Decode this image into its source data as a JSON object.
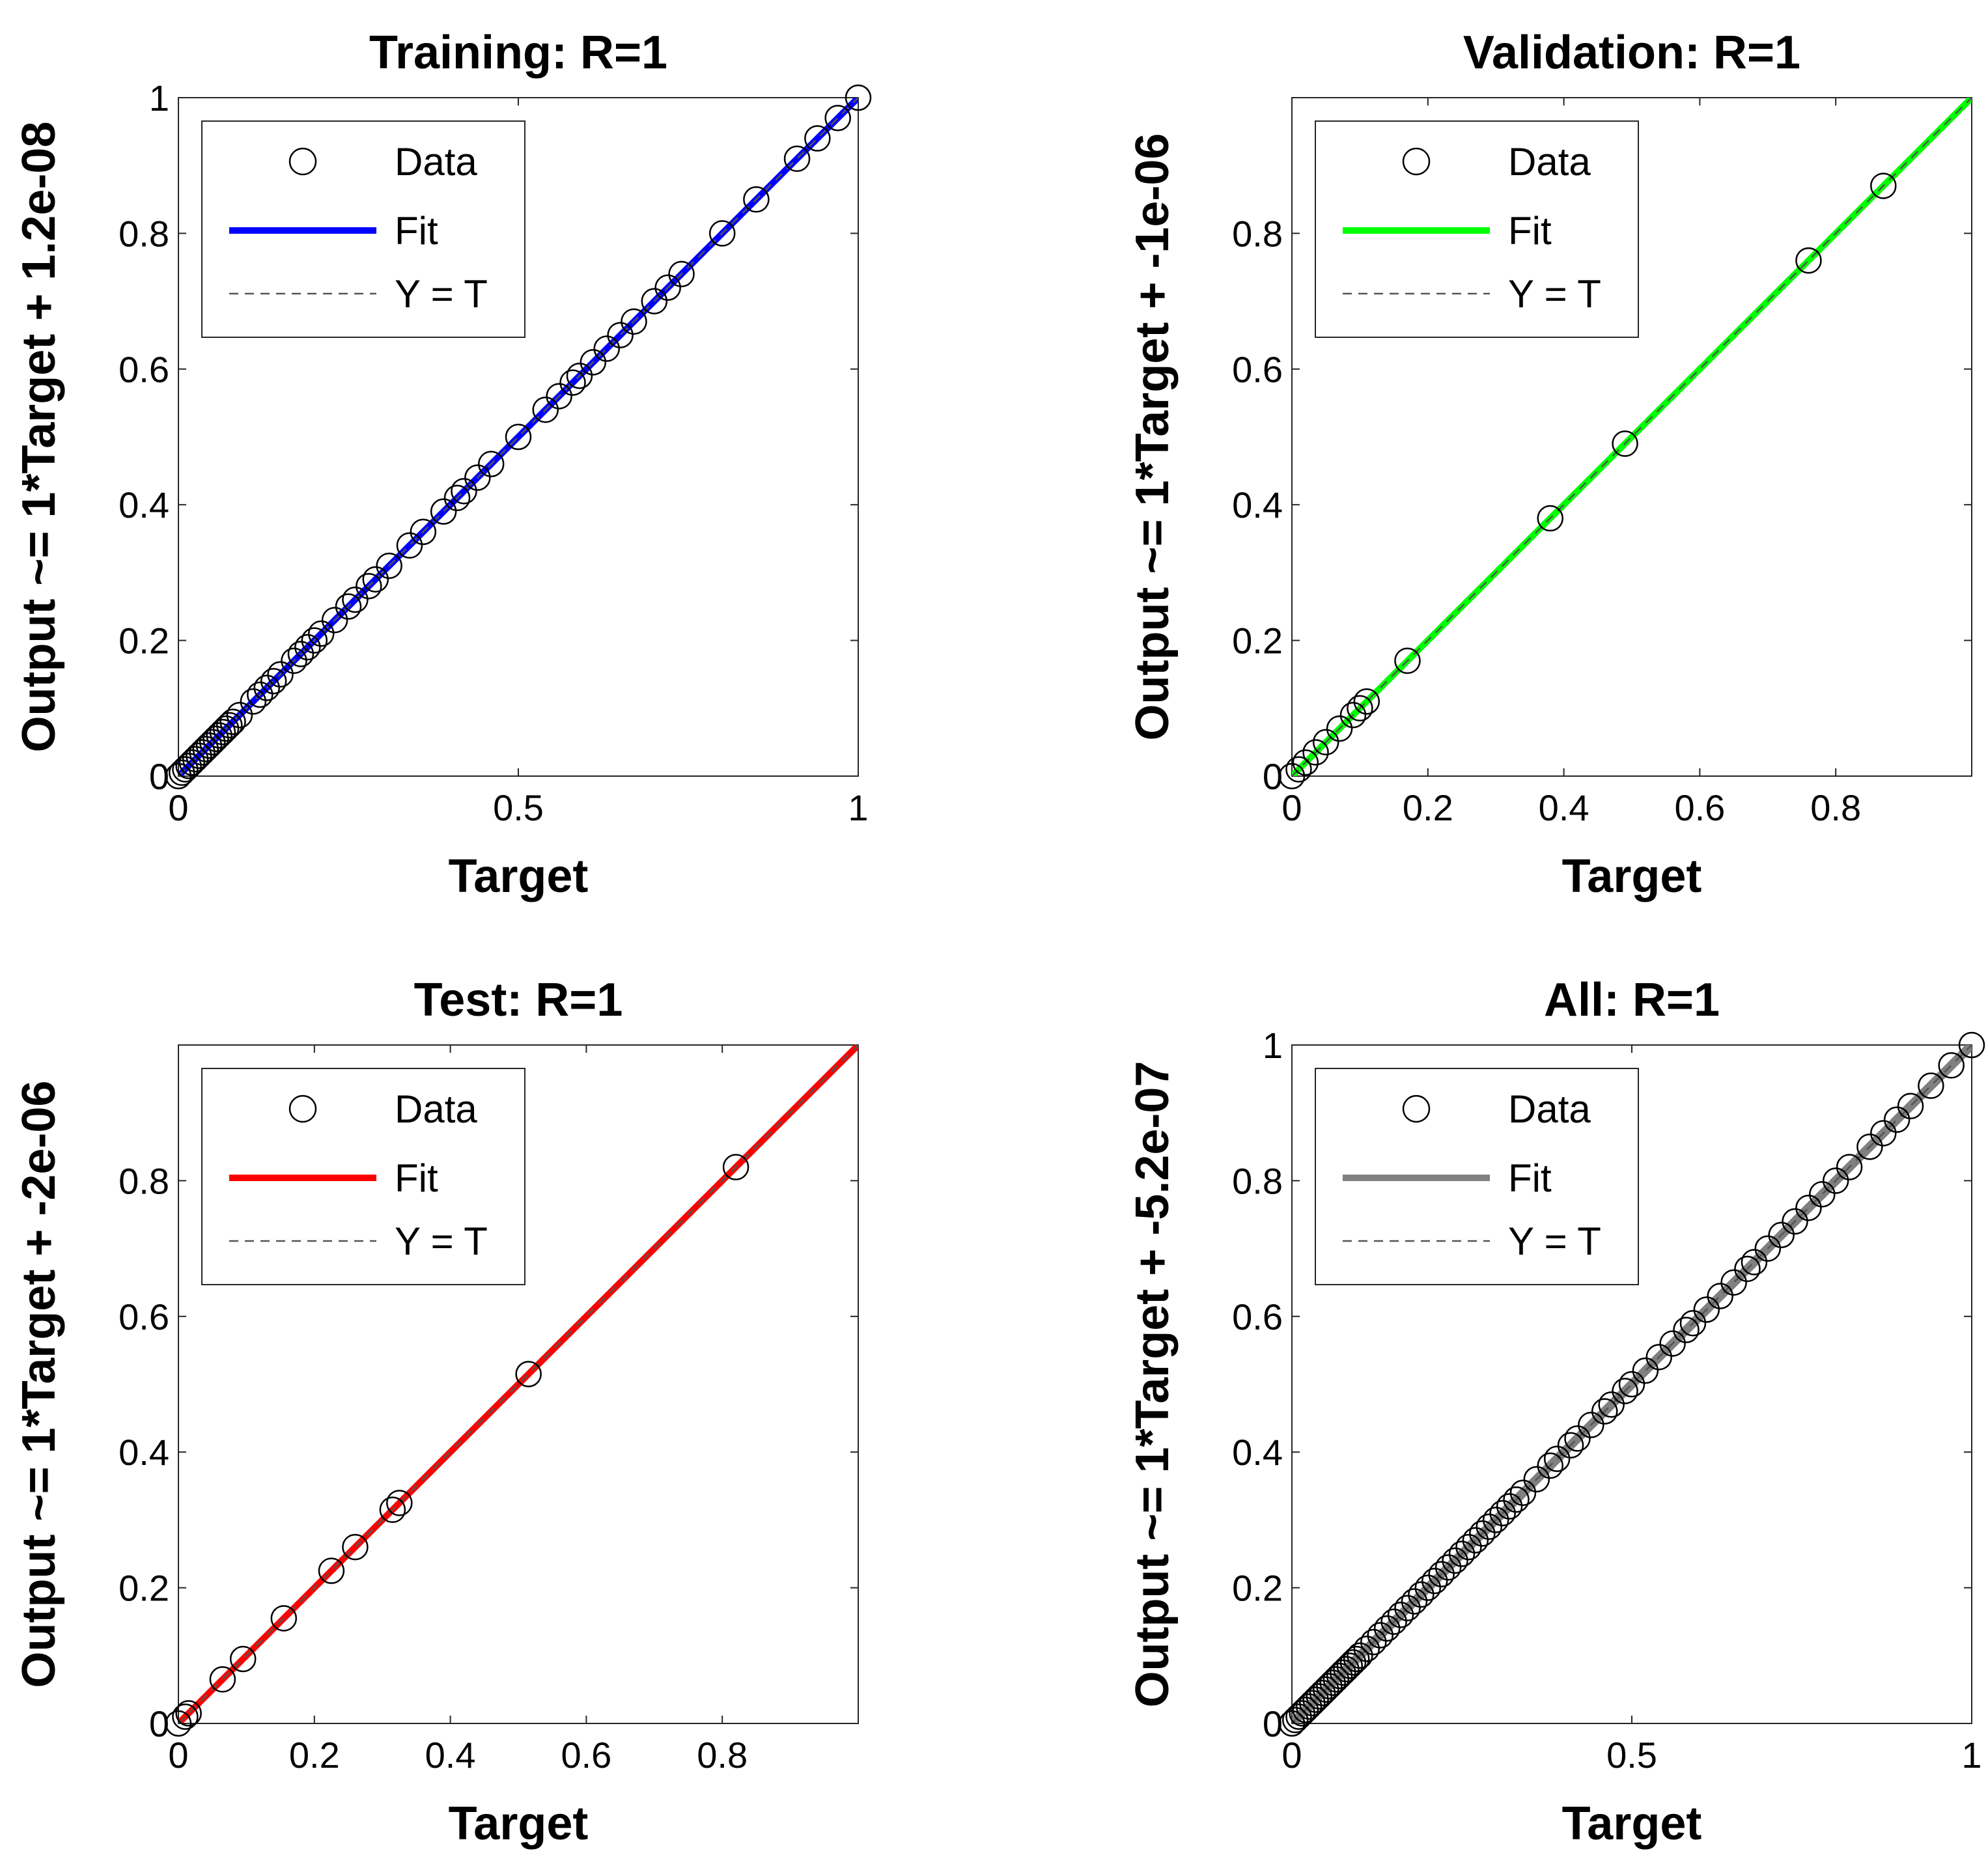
{
  "chart_data": [
    {
      "type": "scatter",
      "title": "Training: R=1",
      "xlabel": "Target",
      "ylabel": "Output ~= 1*Target + 1.2e-08",
      "xlim": [
        0,
        1
      ],
      "ylim": [
        0,
        1
      ],
      "xticks": [
        "0",
        "0.5",
        "1"
      ],
      "yticks": [
        "0",
        "0.2",
        "0.4",
        "0.6",
        "0.8",
        "1"
      ],
      "grid": false,
      "legend": {
        "position": "top-left",
        "entries": [
          "Data",
          "Fit",
          "Y = T"
        ]
      },
      "fit_color": "#0000ff",
      "fit_line": {
        "slope": 1,
        "intercept": 1.2e-08
      },
      "series": [
        {
          "name": "Data",
          "x": [
            0,
            0.005,
            0.01,
            0.015,
            0.02,
            0.025,
            0.03,
            0.035,
            0.04,
            0.045,
            0.05,
            0.055,
            0.06,
            0.065,
            0.07,
            0.075,
            0.08,
            0.09,
            0.11,
            0.12,
            0.13,
            0.14,
            0.15,
            0.17,
            0.18,
            0.19,
            0.2,
            0.21,
            0.23,
            0.25,
            0.26,
            0.28,
            0.29,
            0.31,
            0.34,
            0.36,
            0.39,
            0.41,
            0.42,
            0.44,
            0.46,
            0.5,
            0.54,
            0.56,
            0.58,
            0.59,
            0.61,
            0.63,
            0.65,
            0.67,
            0.7,
            0.72,
            0.74,
            0.8,
            0.85,
            0.91,
            0.94,
            0.97,
            1.0
          ],
          "y": [
            0,
            0.005,
            0.01,
            0.015,
            0.02,
            0.025,
            0.03,
            0.035,
            0.04,
            0.045,
            0.05,
            0.055,
            0.06,
            0.065,
            0.07,
            0.075,
            0.08,
            0.09,
            0.11,
            0.12,
            0.13,
            0.14,
            0.15,
            0.17,
            0.18,
            0.19,
            0.2,
            0.21,
            0.23,
            0.25,
            0.26,
            0.28,
            0.29,
            0.31,
            0.34,
            0.36,
            0.39,
            0.41,
            0.42,
            0.44,
            0.46,
            0.5,
            0.54,
            0.56,
            0.58,
            0.59,
            0.61,
            0.63,
            0.65,
            0.67,
            0.7,
            0.72,
            0.74,
            0.8,
            0.85,
            0.91,
            0.94,
            0.97,
            1.0
          ]
        }
      ]
    },
    {
      "type": "scatter",
      "title": "Validation: R=1",
      "xlabel": "Target",
      "ylabel": "Output ~= 1*Target + -1e-06",
      "xlim": [
        0,
        1
      ],
      "ylim": [
        0,
        1
      ],
      "xticks": [
        "0",
        "0.2",
        "0.4",
        "0.6",
        "0.8"
      ],
      "yticks": [
        "0",
        "0.2",
        "0.4",
        "0.6",
        "0.8"
      ],
      "grid": false,
      "legend": {
        "position": "top-left",
        "entries": [
          "Data",
          "Fit",
          "Y = T"
        ]
      },
      "fit_color": "#00ff00",
      "fit_line": {
        "slope": 1,
        "intercept": -1e-06
      },
      "series": [
        {
          "name": "Data",
          "x": [
            0,
            0.01,
            0.02,
            0.035,
            0.05,
            0.07,
            0.09,
            0.1,
            0.11,
            0.17,
            0.38,
            0.49,
            0.76,
            0.87
          ],
          "y": [
            0,
            0.01,
            0.02,
            0.035,
            0.05,
            0.07,
            0.09,
            0.1,
            0.11,
            0.17,
            0.38,
            0.49,
            0.76,
            0.87
          ]
        }
      ]
    },
    {
      "type": "scatter",
      "title": "Test: R=1",
      "xlabel": "Target",
      "ylabel": "Output ~= 1*Target + -2e-06",
      "xlim": [
        0,
        1
      ],
      "ylim": [
        0,
        1
      ],
      "xticks": [
        "0",
        "0.2",
        "0.4",
        "0.6",
        "0.8"
      ],
      "yticks": [
        "0",
        "0.2",
        "0.4",
        "0.6",
        "0.8"
      ],
      "grid": false,
      "legend": {
        "position": "top-left",
        "entries": [
          "Data",
          "Fit",
          "Y = T"
        ]
      },
      "fit_color": "#ff0000",
      "fit_line": {
        "slope": 1,
        "intercept": -2e-06
      },
      "series": [
        {
          "name": "Data",
          "x": [
            0,
            0.01,
            0.015,
            0.065,
            0.095,
            0.155,
            0.225,
            0.26,
            0.315,
            0.325,
            0.515,
            0.82
          ],
          "y": [
            0,
            0.01,
            0.015,
            0.065,
            0.095,
            0.155,
            0.225,
            0.26,
            0.315,
            0.325,
            0.515,
            0.82
          ]
        }
      ]
    },
    {
      "type": "scatter",
      "title": "All: R=1",
      "xlabel": "Target",
      "ylabel": "Output ~= 1*Target + -5.2e-07",
      "xlim": [
        0,
        1
      ],
      "ylim": [
        0,
        1
      ],
      "xticks": [
        "0",
        "0.5",
        "1"
      ],
      "yticks": [
        "0",
        "0.2",
        "0.4",
        "0.6",
        "0.8",
        "1"
      ],
      "grid": false,
      "legend": {
        "position": "top-left",
        "entries": [
          "Data",
          "Fit",
          "Y = T"
        ]
      },
      "fit_color": "#808080",
      "fit_line": {
        "slope": 1,
        "intercept": -5.2e-07
      },
      "series": [
        {
          "name": "Data",
          "x": [
            0,
            0.005,
            0.01,
            0.015,
            0.02,
            0.025,
            0.03,
            0.035,
            0.04,
            0.045,
            0.05,
            0.055,
            0.06,
            0.065,
            0.07,
            0.075,
            0.08,
            0.085,
            0.09,
            0.095,
            0.1,
            0.11,
            0.12,
            0.13,
            0.14,
            0.15,
            0.16,
            0.17,
            0.18,
            0.19,
            0.2,
            0.21,
            0.22,
            0.23,
            0.24,
            0.25,
            0.26,
            0.27,
            0.28,
            0.29,
            0.3,
            0.31,
            0.32,
            0.33,
            0.34,
            0.36,
            0.38,
            0.39,
            0.41,
            0.42,
            0.44,
            0.46,
            0.47,
            0.49,
            0.5,
            0.52,
            0.54,
            0.56,
            0.58,
            0.59,
            0.61,
            0.63,
            0.65,
            0.67,
            0.68,
            0.7,
            0.72,
            0.74,
            0.76,
            0.78,
            0.8,
            0.82,
            0.85,
            0.87,
            0.89,
            0.91,
            0.94,
            0.97,
            1.0
          ],
          "y": [
            0,
            0.005,
            0.01,
            0.015,
            0.02,
            0.025,
            0.03,
            0.035,
            0.04,
            0.045,
            0.05,
            0.055,
            0.06,
            0.065,
            0.07,
            0.075,
            0.08,
            0.085,
            0.09,
            0.095,
            0.1,
            0.11,
            0.12,
            0.13,
            0.14,
            0.15,
            0.16,
            0.17,
            0.18,
            0.19,
            0.2,
            0.21,
            0.22,
            0.23,
            0.24,
            0.25,
            0.26,
            0.27,
            0.28,
            0.29,
            0.3,
            0.31,
            0.32,
            0.33,
            0.34,
            0.36,
            0.38,
            0.39,
            0.41,
            0.42,
            0.44,
            0.46,
            0.47,
            0.49,
            0.5,
            0.52,
            0.54,
            0.56,
            0.58,
            0.59,
            0.61,
            0.63,
            0.65,
            0.67,
            0.68,
            0.7,
            0.72,
            0.74,
            0.76,
            0.78,
            0.8,
            0.82,
            0.85,
            0.87,
            0.89,
            0.91,
            0.94,
            0.97,
            1.0
          ]
        }
      ]
    }
  ]
}
